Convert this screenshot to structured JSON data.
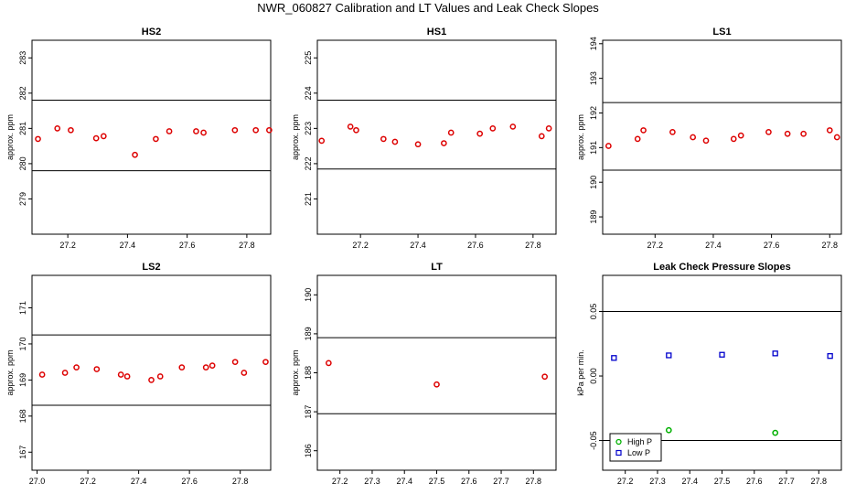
{
  "title": "NWR_060827  Calibration and LT Values and Leak Check Slopes",
  "colors": {
    "red": "#dd0000",
    "green": "#00b000",
    "blue": "#0000cc",
    "axis": "#000000"
  },
  "chart_data": [
    {
      "type": "scatter",
      "title": "HS2",
      "ylabel": "approx. ppm",
      "xlim": [
        27.08,
        27.88
      ],
      "ylim": [
        278.0,
        283.5
      ],
      "xticks": [
        "27.2",
        "27.4",
        "27.6",
        "27.8"
      ],
      "yticks": [
        "279",
        "280",
        "281",
        "282",
        "283"
      ],
      "hlines": [
        281.8,
        279.8
      ],
      "series": [
        {
          "name": "HS2",
          "color": "#dd0000",
          "marker": "circle",
          "x": [
            27.1,
            27.165,
            27.21,
            27.295,
            27.32,
            27.425,
            27.495,
            27.54,
            27.63,
            27.655,
            27.76,
            27.83,
            27.875
          ],
          "y": [
            280.7,
            281.0,
            280.95,
            280.72,
            280.78,
            280.25,
            280.7,
            280.92,
            280.92,
            280.88,
            280.95,
            280.95,
            280.95
          ]
        }
      ]
    },
    {
      "type": "scatter",
      "title": "HS1",
      "ylabel": "approx. ppm",
      "xlim": [
        27.05,
        27.88
      ],
      "ylim": [
        220.0,
        225.5
      ],
      "xticks": [
        "27.2",
        "27.4",
        "27.6",
        "27.8"
      ],
      "yticks": [
        "221",
        "222",
        "223",
        "224",
        "225"
      ],
      "hlines": [
        223.8,
        221.85
      ],
      "series": [
        {
          "name": "HS1",
          "color": "#dd0000",
          "marker": "circle",
          "x": [
            27.065,
            27.165,
            27.185,
            27.28,
            27.32,
            27.4,
            27.49,
            27.515,
            27.615,
            27.66,
            27.73,
            27.83,
            27.855
          ],
          "y": [
            222.65,
            223.05,
            222.95,
            222.7,
            222.62,
            222.55,
            222.58,
            222.88,
            222.85,
            223.0,
            223.05,
            222.78,
            223.0
          ]
        }
      ]
    },
    {
      "type": "scatter",
      "title": "LS1",
      "ylabel": "approx. ppm",
      "xlim": [
        27.02,
        27.84
      ],
      "ylim": [
        188.5,
        194.1
      ],
      "xticks": [
        "27.2",
        "27.4",
        "27.6",
        "27.8"
      ],
      "yticks": [
        "189",
        "190",
        "191",
        "192",
        "193",
        "194"
      ],
      "hlines": [
        192.3,
        190.35
      ],
      "series": [
        {
          "name": "LS1",
          "color": "#dd0000",
          "marker": "circle",
          "x": [
            27.04,
            27.14,
            27.16,
            27.26,
            27.33,
            27.375,
            27.47,
            27.495,
            27.59,
            27.655,
            27.71,
            27.8,
            27.825
          ],
          "y": [
            191.05,
            191.25,
            191.5,
            191.45,
            191.3,
            191.2,
            191.25,
            191.35,
            191.45,
            191.4,
            191.4,
            191.5,
            191.3
          ]
        }
      ]
    },
    {
      "type": "scatter",
      "title": "LS2",
      "ylabel": "approx. ppm",
      "xlim": [
        26.98,
        27.92
      ],
      "ylim": [
        166.5,
        171.9
      ],
      "xticks": [
        "27.0",
        "27.2",
        "27.4",
        "27.6",
        "27.8"
      ],
      "yticks": [
        "167",
        "168",
        "169",
        "170",
        "171"
      ],
      "hlines": [
        170.25,
        168.3
      ],
      "series": [
        {
          "name": "LS2",
          "color": "#dd0000",
          "marker": "circle",
          "x": [
            27.02,
            27.11,
            27.155,
            27.235,
            27.33,
            27.355,
            27.45,
            27.485,
            27.57,
            27.665,
            27.69,
            27.78,
            27.815,
            27.9
          ],
          "y": [
            169.15,
            169.2,
            169.35,
            169.3,
            169.15,
            169.1,
            169.0,
            169.1,
            169.35,
            169.35,
            169.4,
            169.5,
            169.2,
            169.5
          ]
        }
      ]
    },
    {
      "type": "scatter",
      "title": "LT",
      "ylabel": "approx. ppm",
      "xlim": [
        27.13,
        27.87
      ],
      "ylim": [
        185.5,
        190.5
      ],
      "xticks": [
        "27.2",
        "27.3",
        "27.4",
        "27.5",
        "27.6",
        "27.7",
        "27.8"
      ],
      "yticks": [
        "186",
        "187",
        "188",
        "189",
        "190"
      ],
      "hlines": [
        188.9,
        186.95
      ],
      "series": [
        {
          "name": "LT",
          "color": "#dd0000",
          "marker": "circle",
          "x": [
            27.165,
            27.5,
            27.835
          ],
          "y": [
            188.25,
            187.7,
            187.9
          ]
        }
      ]
    },
    {
      "type": "scatter",
      "title": "Leak Check Pressure Slopes",
      "ylabel": "kPa per min.",
      "xlim": [
        27.13,
        27.87
      ],
      "ylim": [
        -0.073,
        0.078
      ],
      "xticks": [
        "27.2",
        "27.3",
        "27.4",
        "27.5",
        "27.6",
        "27.7",
        "27.8"
      ],
      "yticks": [
        "-0.05",
        "0.00",
        "0.05"
      ],
      "hlines": [
        0.05,
        -0.05
      ],
      "legend": {
        "position": "bottom-left"
      },
      "series": [
        {
          "name": "High P",
          "color": "#00b000",
          "marker": "circle",
          "x": [
            27.335,
            27.665
          ],
          "y": [
            -0.042,
            -0.044
          ]
        },
        {
          "name": "Low P",
          "color": "#0000cc",
          "marker": "square",
          "x": [
            27.165,
            27.335,
            27.5,
            27.665,
            27.835
          ],
          "y": [
            0.014,
            0.016,
            0.0165,
            0.0175,
            0.0155
          ]
        }
      ]
    }
  ]
}
